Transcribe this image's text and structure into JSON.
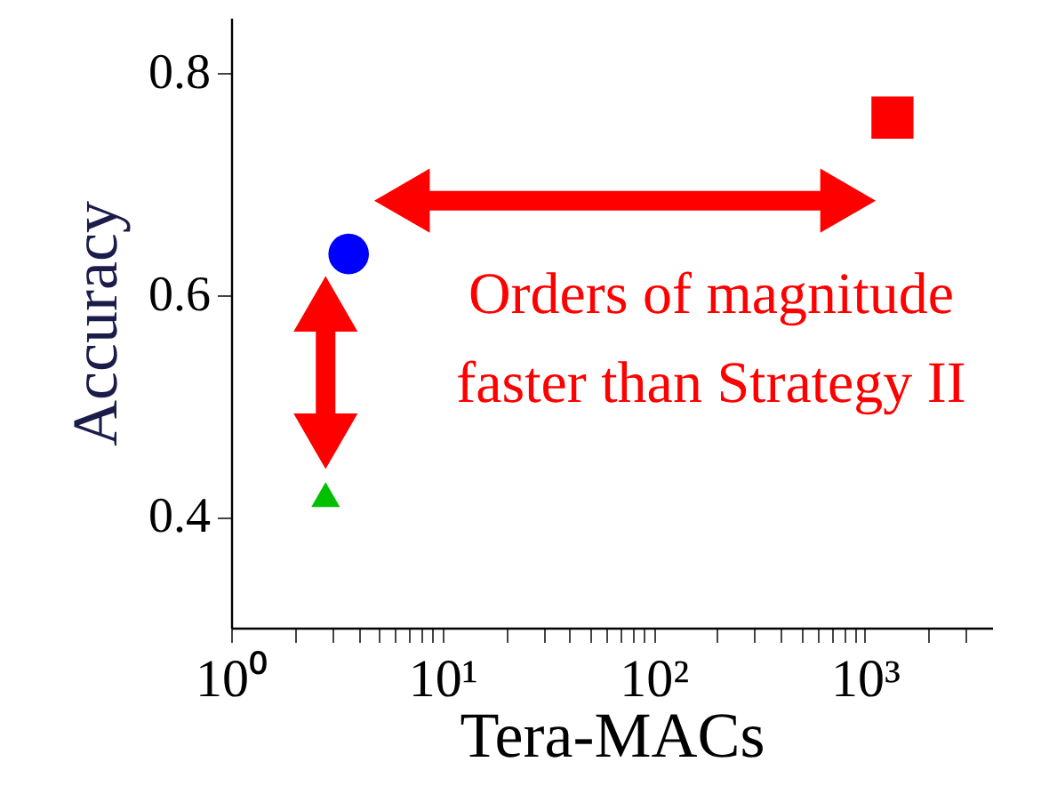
{
  "chart_data": {
    "type": "scatter",
    "xlabel": "Tera-MACs",
    "ylabel": "Accuracy",
    "log": "x",
    "xlim": [
      1,
      4000
    ],
    "ylim": [
      0.3,
      0.85
    ],
    "xticks": [
      {
        "value": 1,
        "label": "10⁰"
      },
      {
        "value": 2,
        "label": null
      },
      {
        "value": 3,
        "label": null
      },
      {
        "value": 4,
        "label": null
      },
      {
        "value": 5,
        "label": null
      },
      {
        "value": 6,
        "label": null
      },
      {
        "value": 7,
        "label": null
      },
      {
        "value": 8,
        "label": null
      },
      {
        "value": 9,
        "label": null
      },
      {
        "value": 10,
        "label": "10¹"
      },
      {
        "value": 20,
        "label": null
      },
      {
        "value": 30,
        "label": null
      },
      {
        "value": 40,
        "label": null
      },
      {
        "value": 50,
        "label": null
      },
      {
        "value": 60,
        "label": null
      },
      {
        "value": 70,
        "label": null
      },
      {
        "value": 80,
        "label": null
      },
      {
        "value": 90,
        "label": null
      },
      {
        "value": 100,
        "label": "10²"
      },
      {
        "value": 200,
        "label": null
      },
      {
        "value": 300,
        "label": null
      },
      {
        "value": 400,
        "label": null
      },
      {
        "value": 500,
        "label": null
      },
      {
        "value": 600,
        "label": null
      },
      {
        "value": 700,
        "label": null
      },
      {
        "value": 800,
        "label": null
      },
      {
        "value": 900,
        "label": null
      },
      {
        "value": 1000,
        "label": "10³"
      },
      {
        "value": 2000,
        "label": null
      },
      {
        "value": 3000,
        "label": null
      }
    ],
    "yticks": [
      0.4,
      0.6,
      0.8
    ],
    "grid": false,
    "legend": false,
    "series": [
      {
        "color": "#00c000",
        "marker": "triangle",
        "x": [
          2.8
        ],
        "values": [
          0.42
        ]
      },
      {
        "color": "#0000ff",
        "marker": "circle",
        "x": [
          3.6
        ],
        "values": [
          0.637
        ]
      },
      {
        "color": "#ff0000",
        "marker": "square",
        "x": [
          1350
        ],
        "values": [
          0.76
        ]
      }
    ],
    "annotations": [
      "Orders of magnitude\nfaster than Strategy II"
    ]
  }
}
